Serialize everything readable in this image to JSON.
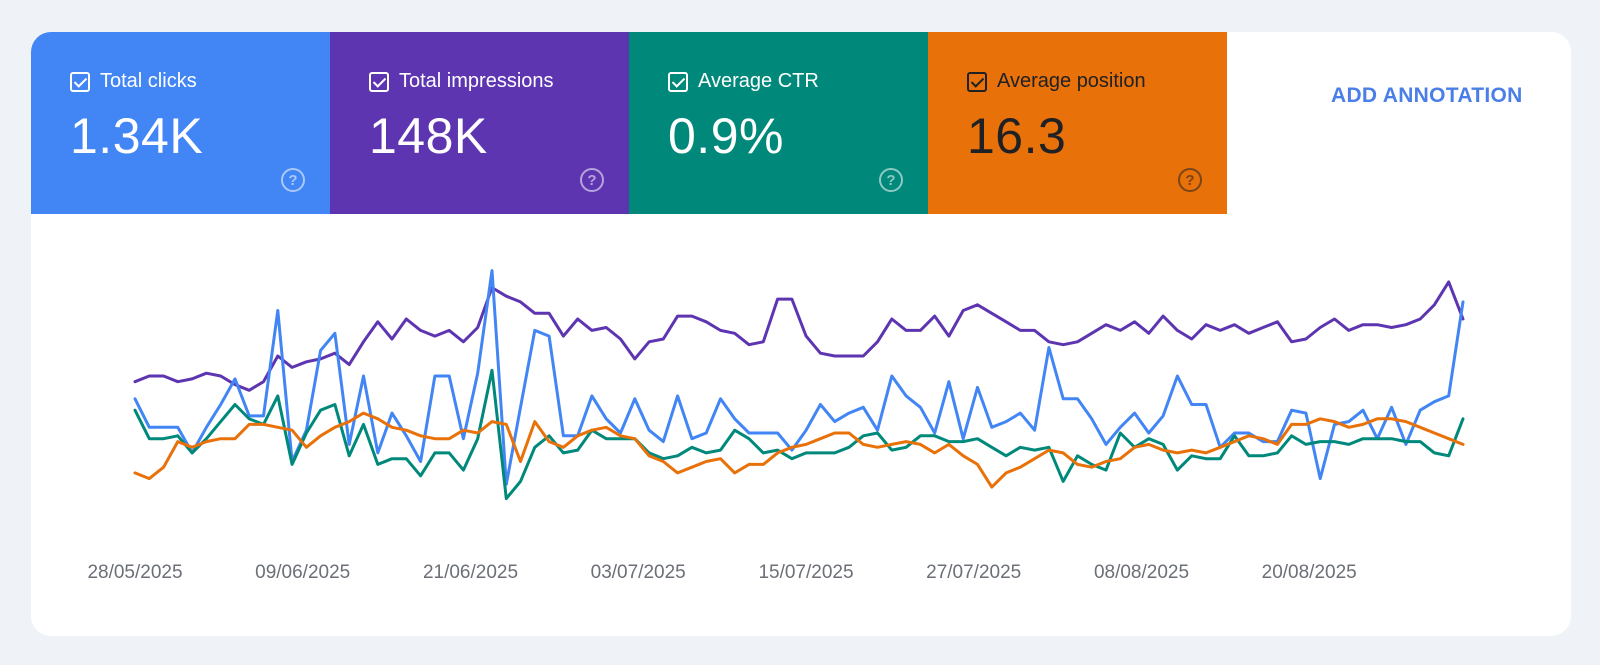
{
  "metrics": [
    {
      "key": "clicks",
      "label": "Total clicks",
      "value": "1.34K",
      "help": "?",
      "bg": "#4285f4",
      "fg": "#ffffff",
      "checked": true
    },
    {
      "key": "impressions",
      "label": "Total impressions",
      "value": "148K",
      "help": "?",
      "bg": "#5e35b1",
      "fg": "#ffffff",
      "checked": true
    },
    {
      "key": "ctr",
      "label": "Average CTR",
      "value": "0.9%",
      "help": "?",
      "bg": "#00897b",
      "fg": "#ffffff",
      "checked": true
    },
    {
      "key": "position",
      "label": "Average position",
      "value": "16.3",
      "help": "?",
      "bg": "#e8710a",
      "fg": "#202124",
      "checked": true
    }
  ],
  "toolbar": {
    "add_annotation_label": "ADD ANNOTATION"
  },
  "chart_data": {
    "type": "line",
    "x_start": "28/05/2025",
    "x_end": "31/08/2025",
    "x_ticks": [
      "28/05/2025",
      "09/06/2025",
      "21/06/2025",
      "03/07/2025",
      "15/07/2025",
      "27/07/2025",
      "08/08/2025",
      "20/08/2025"
    ],
    "ylim": [
      0,
      100
    ],
    "y_axis_visible": false,
    "grid": false,
    "series": [
      {
        "key": "impressions",
        "color": "#5e35b1",
        "values": [
          58,
          60,
          60,
          58,
          59,
          61,
          60,
          57,
          55,
          58,
          67,
          63,
          65,
          66,
          68,
          64,
          72,
          79,
          73,
          80,
          76,
          74,
          76,
          72,
          77,
          91,
          88,
          86,
          82,
          82,
          74,
          80,
          76,
          77,
          73,
          66,
          72,
          73,
          81,
          81,
          79,
          76,
          75,
          71,
          72,
          87,
          87,
          74,
          68,
          67,
          67,
          67,
          72,
          80,
          76,
          76,
          81,
          74,
          83,
          85,
          82,
          79,
          76,
          76,
          72,
          71,
          72,
          75,
          78,
          76,
          79,
          75,
          81,
          76,
          73,
          78,
          76,
          78,
          75,
          77,
          79,
          72,
          73,
          77,
          80,
          76,
          78,
          78,
          77,
          78,
          80,
          85,
          93,
          80
        ]
      },
      {
        "key": "clicks",
        "color": "#4285f4",
        "values": [
          52,
          42,
          42,
          42,
          33,
          42,
          50,
          59,
          46,
          46,
          83,
          30,
          41,
          69,
          75,
          36,
          60,
          33,
          47,
          39,
          30,
          60,
          60,
          38,
          61,
          97,
          22,
          49,
          76,
          74,
          39,
          39,
          53,
          45,
          40,
          52,
          41,
          37,
          53,
          38,
          40,
          52,
          45,
          40,
          40,
          40,
          34,
          41,
          50,
          44,
          47,
          49,
          41,
          60,
          53,
          49,
          40,
          58,
          38,
          56,
          42,
          44,
          47,
          41,
          70,
          52,
          52,
          45,
          36,
          42,
          47,
          40,
          46,
          60,
          50,
          50,
          35,
          40,
          40,
          37,
          37,
          48,
          47,
          24,
          43,
          44,
          48,
          38,
          49,
          36,
          48,
          51,
          53,
          86
        ]
      },
      {
        "key": "ctr",
        "color": "#00897b",
        "values": [
          48,
          38,
          38,
          39,
          33,
          38,
          44,
          50,
          45,
          43,
          53,
          29,
          40,
          48,
          50,
          32,
          43,
          29,
          31,
          31,
          25,
          33,
          33,
          27,
          38,
          62,
          17,
          23,
          35,
          39,
          33,
          34,
          41,
          38,
          38,
          38,
          33,
          31,
          32,
          35,
          33,
          34,
          41,
          38,
          33,
          34,
          31,
          33,
          33,
          33,
          35,
          39,
          40,
          34,
          35,
          39,
          39,
          37,
          37,
          38,
          35,
          32,
          35,
          34,
          35,
          23,
          32,
          29,
          27,
          40,
          35,
          38,
          36,
          27,
          32,
          31,
          31,
          39,
          32,
          32,
          33,
          39,
          36,
          37,
          37,
          36,
          38,
          38,
          38,
          37,
          37,
          33,
          32,
          45
        ]
      },
      {
        "key": "position",
        "color": "#e8710a",
        "values": [
          26,
          24,
          28,
          37,
          35,
          37,
          38,
          38,
          43,
          43,
          42,
          41,
          35,
          39,
          42,
          44,
          47,
          45,
          42,
          41,
          39,
          38,
          38,
          41,
          40,
          44,
          43,
          30,
          44,
          37,
          35,
          39,
          41,
          42,
          39,
          38,
          32,
          30,
          26,
          28,
          30,
          31,
          26,
          29,
          29,
          33,
          35,
          36,
          38,
          40,
          40,
          36,
          35,
          36,
          37,
          36,
          33,
          36,
          32,
          29,
          21,
          26,
          28,
          31,
          34,
          33,
          29,
          28,
          30,
          31,
          35,
          36,
          34,
          33,
          34,
          33,
          35,
          37,
          39,
          38,
          36,
          43,
          43,
          45,
          44,
          42,
          43,
          45,
          45,
          44,
          42,
          40,
          38,
          36
        ]
      }
    ]
  }
}
